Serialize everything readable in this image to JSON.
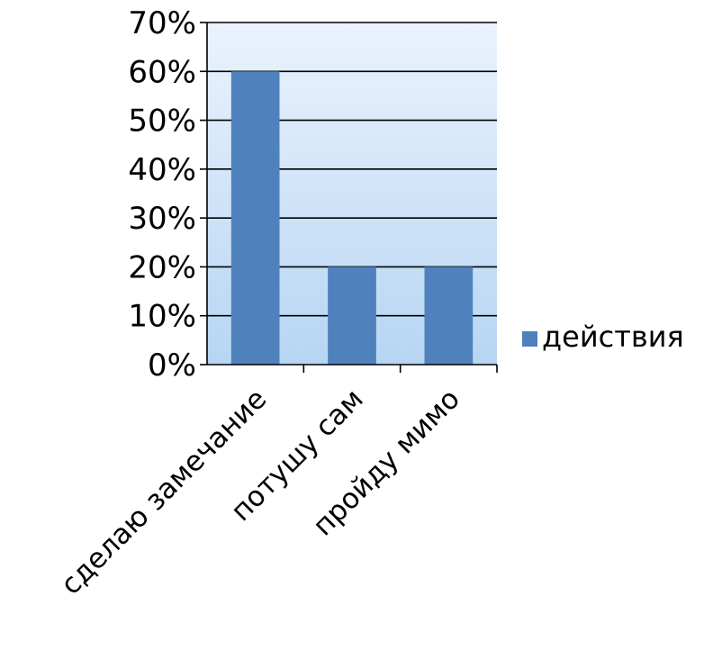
{
  "chart_data": {
    "type": "bar",
    "categories": [
      "сделаю замечание",
      "потушу сам",
      "пройду мимо"
    ],
    "series": [
      {
        "name": "действия",
        "values": [
          60,
          20,
          20
        ],
        "color": "#4F81BD"
      }
    ],
    "ylim": [
      0,
      70
    ],
    "yticks": [
      0,
      10,
      20,
      30,
      40,
      50,
      60,
      70
    ],
    "ytick_format": "percent",
    "grid": true,
    "legend": "right",
    "plot_background": [
      "#eaf3fd",
      "#b7d5f3"
    ]
  }
}
